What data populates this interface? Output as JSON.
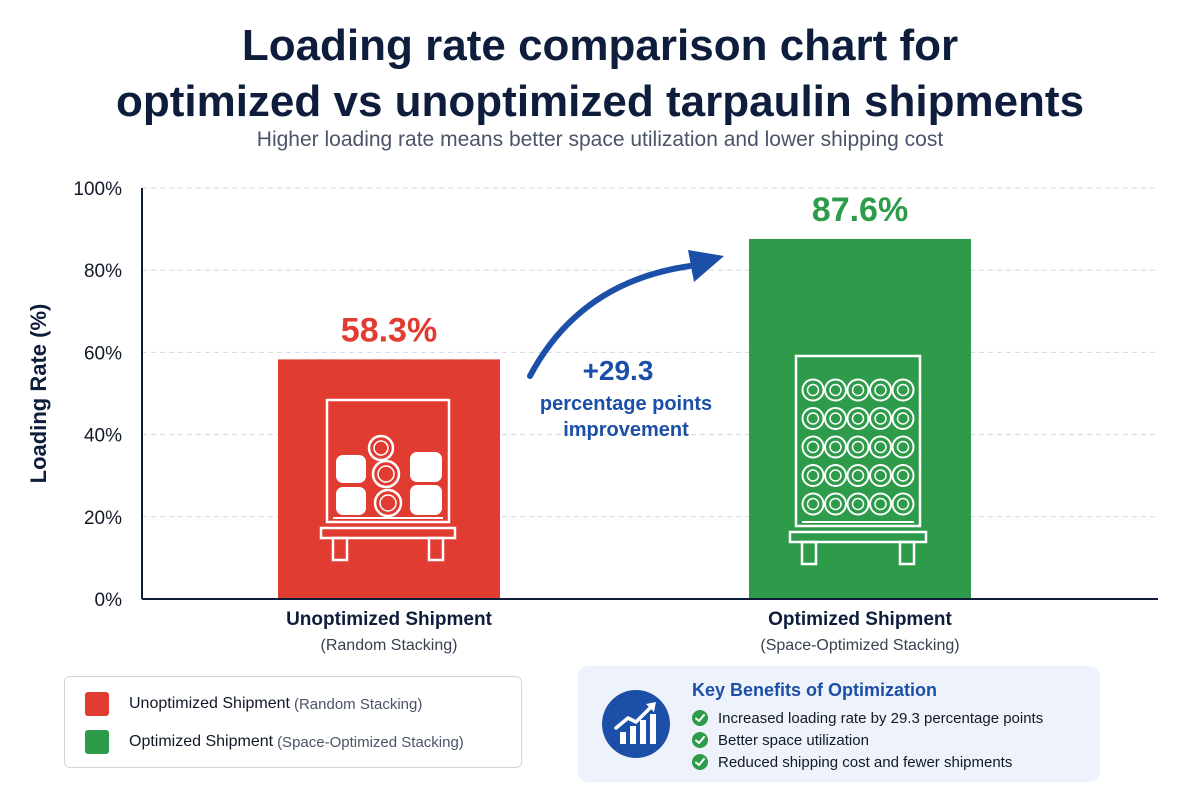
{
  "title_line1": "Loading rate comparison chart for",
  "title_line2": "optimized vs unoptimized tarpaulin shipments",
  "subtitle": "Higher loading rate means better space utilization and lower shipping cost",
  "chart_data": {
    "type": "bar",
    "ylabel": "Loading Rate (%)",
    "ylim": [
      0,
      100
    ],
    "yticks": [
      0,
      20,
      40,
      60,
      80,
      100
    ],
    "ytick_labels": [
      "0%",
      "20%",
      "40%",
      "60%",
      "80%",
      "100%"
    ],
    "grid": true,
    "categories": [
      {
        "label": "Unoptimized Shipment",
        "sublabel": "(Random Stacking)"
      },
      {
        "label": "Optimized Shipment",
        "sublabel": "(Space-Optimized Stacking)"
      }
    ],
    "values": [
      58.3,
      87.6
    ],
    "value_labels": [
      "58.3%",
      "87.6%"
    ],
    "colors": [
      "#e03c31",
      "#2e9b4a"
    ],
    "annotation": {
      "lines": [
        "+29.3",
        "percentage points",
        "improvement"
      ],
      "color": "#1c4fa8"
    }
  },
  "legend": {
    "items": [
      {
        "label": "Unoptimized Shipment",
        "sub": "(Random Stacking)",
        "color": "#e03c31"
      },
      {
        "label": "Optimized Shipment",
        "sub": "(Space-Optimized Stacking)",
        "color": "#2e9b4a"
      }
    ]
  },
  "benefits": {
    "title": "Key Benefits of Optimization",
    "icon": "growth-chart-icon",
    "items": [
      "Increased loading rate by 29.3 percentage points",
      "Better space utilization",
      "Reduced shipping cost and fewer shipments"
    ]
  }
}
